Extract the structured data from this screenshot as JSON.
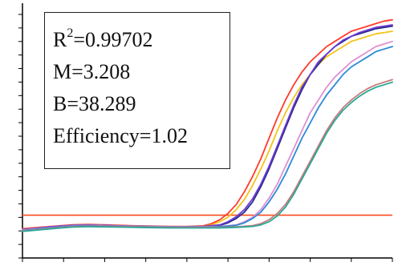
{
  "chart_data": {
    "type": "line",
    "title": "",
    "xlabel": "",
    "ylabel": "",
    "xlim": [
      0,
      45
    ],
    "ylim": [
      0,
      1
    ],
    "grid": false,
    "legend": "none",
    "threshold": {
      "y": 0.168,
      "color": "#ff4a1c"
    },
    "series": [
      {
        "color": "#ff3a2a",
        "x": [
          0,
          2,
          4,
          6,
          8,
          10,
          12,
          14,
          16,
          18,
          20,
          22,
          23,
          24,
          25,
          26,
          27,
          28,
          29,
          30,
          31,
          32,
          33,
          34,
          35,
          36,
          37,
          38,
          39,
          40,
          41,
          42,
          43,
          44,
          45
        ],
        "values": [
          0.115,
          0.12,
          0.125,
          0.13,
          0.132,
          0.13,
          0.128,
          0.126,
          0.125,
          0.124,
          0.124,
          0.126,
          0.135,
          0.15,
          0.175,
          0.21,
          0.26,
          0.32,
          0.39,
          0.47,
          0.55,
          0.62,
          0.68,
          0.73,
          0.77,
          0.8,
          0.83,
          0.85,
          0.87,
          0.89,
          0.9,
          0.91,
          0.92,
          0.93,
          0.935
        ]
      },
      {
        "color": "#f2c418",
        "x": [
          0,
          2,
          4,
          6,
          8,
          10,
          12,
          14,
          16,
          18,
          20,
          22,
          23,
          24,
          25,
          26,
          27,
          28,
          29,
          30,
          31,
          32,
          33,
          34,
          35,
          36,
          37,
          38,
          39,
          40,
          41,
          42,
          43,
          44,
          45
        ],
        "values": [
          0.113,
          0.118,
          0.123,
          0.128,
          0.13,
          0.128,
          0.126,
          0.125,
          0.124,
          0.123,
          0.123,
          0.124,
          0.13,
          0.142,
          0.16,
          0.19,
          0.23,
          0.285,
          0.35,
          0.42,
          0.5,
          0.57,
          0.63,
          0.68,
          0.72,
          0.76,
          0.79,
          0.81,
          0.83,
          0.85,
          0.86,
          0.87,
          0.88,
          0.885,
          0.89
        ]
      },
      {
        "color": "#2a2a8a",
        "x": [
          0,
          2,
          4,
          6,
          8,
          10,
          12,
          14,
          16,
          18,
          20,
          22,
          24,
          25,
          26,
          27,
          28,
          29,
          30,
          31,
          32,
          33,
          34,
          35,
          36,
          37,
          38,
          39,
          40,
          41,
          42,
          43,
          44,
          45
        ],
        "values": [
          0.11,
          0.116,
          0.122,
          0.127,
          0.129,
          0.127,
          0.125,
          0.124,
          0.123,
          0.122,
          0.122,
          0.123,
          0.128,
          0.138,
          0.155,
          0.18,
          0.22,
          0.28,
          0.35,
          0.43,
          0.51,
          0.59,
          0.66,
          0.72,
          0.76,
          0.8,
          0.83,
          0.85,
          0.87,
          0.88,
          0.89,
          0.9,
          0.905,
          0.91
        ]
      },
      {
        "color": "#6a3ad0",
        "x": [
          0,
          2,
          4,
          6,
          8,
          10,
          12,
          14,
          16,
          18,
          20,
          22,
          24,
          25,
          26,
          27,
          28,
          29,
          30,
          31,
          32,
          33,
          34,
          35,
          36,
          37,
          38,
          39,
          40,
          41,
          42,
          43,
          44,
          45
        ],
        "values": [
          0.112,
          0.118,
          0.124,
          0.128,
          0.13,
          0.128,
          0.126,
          0.125,
          0.124,
          0.123,
          0.123,
          0.124,
          0.13,
          0.142,
          0.162,
          0.19,
          0.232,
          0.29,
          0.36,
          0.44,
          0.52,
          0.6,
          0.67,
          0.72,
          0.77,
          0.8,
          0.83,
          0.855,
          0.87,
          0.885,
          0.895,
          0.905,
          0.91,
          0.915
        ]
      },
      {
        "color": "#e090d0",
        "x": [
          0,
          2,
          4,
          6,
          8,
          10,
          12,
          14,
          16,
          18,
          20,
          22,
          24,
          26,
          27,
          28,
          29,
          30,
          31,
          32,
          33,
          34,
          35,
          36,
          37,
          38,
          39,
          40,
          41,
          42,
          43,
          44,
          45
        ],
        "values": [
          0.11,
          0.116,
          0.121,
          0.126,
          0.128,
          0.126,
          0.125,
          0.124,
          0.123,
          0.122,
          0.122,
          0.122,
          0.124,
          0.13,
          0.142,
          0.16,
          0.19,
          0.235,
          0.29,
          0.36,
          0.43,
          0.5,
          0.57,
          0.62,
          0.67,
          0.71,
          0.74,
          0.77,
          0.79,
          0.81,
          0.83,
          0.84,
          0.85
        ]
      },
      {
        "color": "#2a8ad8",
        "x": [
          0,
          2,
          4,
          6,
          8,
          10,
          12,
          14,
          16,
          18,
          20,
          22,
          24,
          26,
          27,
          28,
          29,
          30,
          31,
          32,
          33,
          34,
          35,
          36,
          37,
          38,
          39,
          40,
          41,
          42,
          43,
          44,
          45
        ],
        "values": [
          0.108,
          0.114,
          0.12,
          0.125,
          0.127,
          0.125,
          0.124,
          0.123,
          0.122,
          0.121,
          0.121,
          0.121,
          0.123,
          0.128,
          0.138,
          0.155,
          0.18,
          0.22,
          0.27,
          0.33,
          0.4,
          0.47,
          0.53,
          0.59,
          0.64,
          0.68,
          0.72,
          0.75,
          0.77,
          0.79,
          0.81,
          0.82,
          0.83
        ]
      },
      {
        "color": "#c87a7a",
        "x": [
          0,
          2,
          4,
          6,
          8,
          10,
          12,
          14,
          16,
          18,
          20,
          22,
          24,
          26,
          28,
          29,
          30,
          31,
          32,
          33,
          34,
          35,
          36,
          37,
          38,
          39,
          40,
          41,
          42,
          43,
          44,
          45
        ],
        "values": [
          0.106,
          0.112,
          0.118,
          0.123,
          0.125,
          0.124,
          0.123,
          0.122,
          0.121,
          0.12,
          0.12,
          0.12,
          0.12,
          0.122,
          0.127,
          0.135,
          0.15,
          0.175,
          0.21,
          0.26,
          0.32,
          0.38,
          0.44,
          0.5,
          0.55,
          0.59,
          0.62,
          0.645,
          0.665,
          0.68,
          0.69,
          0.7
        ]
      },
      {
        "color": "#28a898",
        "x": [
          0,
          2,
          4,
          6,
          8,
          10,
          12,
          14,
          16,
          18,
          20,
          22,
          24,
          26,
          28,
          29,
          30,
          31,
          32,
          33,
          34,
          35,
          36,
          37,
          38,
          39,
          40,
          41,
          42,
          43,
          44,
          45
        ],
        "values": [
          0.104,
          0.11,
          0.116,
          0.121,
          0.123,
          0.122,
          0.121,
          0.12,
          0.119,
          0.118,
          0.118,
          0.118,
          0.118,
          0.12,
          0.124,
          0.13,
          0.142,
          0.165,
          0.2,
          0.25,
          0.31,
          0.37,
          0.43,
          0.49,
          0.54,
          0.58,
          0.61,
          0.635,
          0.655,
          0.67,
          0.68,
          0.69
        ]
      }
    ]
  },
  "stats": {
    "r2_base": "R",
    "r2_sup": "2",
    "r2_value": "=0.99702",
    "m": "M=3.208",
    "b": "B=38.289",
    "efficiency": "Efficiency=1.02"
  }
}
